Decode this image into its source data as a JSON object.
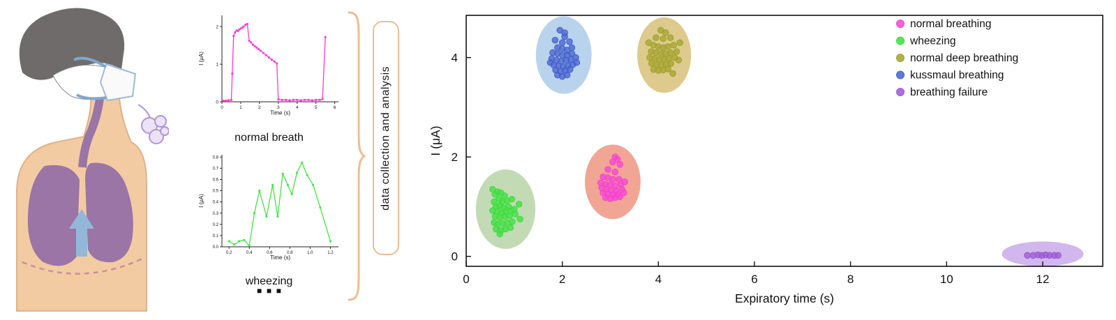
{
  "labels": {
    "process": "data collection and analysis",
    "ellipsis": "■  ■  ■"
  },
  "colors": {
    "brace": "#ecbd93",
    "box_border": "#ecbd93"
  },
  "chart_data": [
    {
      "id": "normal-breath",
      "type": "line",
      "title": "normal breath",
      "xlabel": "Time (s)",
      "ylabel": "I (μA)",
      "color": "#ff38d2",
      "xlim": [
        0,
        6.2
      ],
      "ylim": [
        0,
        2.3
      ],
      "xticks": [
        0,
        1,
        2,
        3,
        4,
        5,
        6
      ],
      "xtick_labels": [
        "0",
        "1",
        "2",
        "3",
        "4",
        "5",
        "6"
      ],
      "yticks": [
        0,
        1,
        2
      ],
      "ytick_labels": [
        "0",
        "1",
        "2"
      ],
      "points": [
        [
          0.05,
          0.03
        ],
        [
          0.2,
          0.03
        ],
        [
          0.35,
          0.04
        ],
        [
          0.5,
          0.05
        ],
        [
          0.55,
          0.75
        ],
        [
          0.62,
          1.75
        ],
        [
          0.7,
          1.85
        ],
        [
          0.78,
          1.9
        ],
        [
          0.85,
          1.88
        ],
        [
          0.92,
          1.92
        ],
        [
          1.0,
          1.95
        ],
        [
          1.08,
          1.97
        ],
        [
          1.15,
          2.0
        ],
        [
          1.25,
          2.05
        ],
        [
          1.35,
          2.07
        ],
        [
          1.45,
          1.62
        ],
        [
          1.55,
          1.58
        ],
        [
          1.65,
          1.52
        ],
        [
          1.75,
          1.48
        ],
        [
          1.85,
          1.44
        ],
        [
          1.95,
          1.4
        ],
        [
          2.05,
          1.36
        ],
        [
          2.2,
          1.3
        ],
        [
          2.35,
          1.24
        ],
        [
          2.5,
          1.18
        ],
        [
          2.65,
          1.12
        ],
        [
          2.8,
          1.07
        ],
        [
          2.92,
          1.02
        ],
        [
          3.0,
          0.06
        ],
        [
          3.2,
          0.05
        ],
        [
          3.4,
          0.05
        ],
        [
          3.6,
          0.04
        ],
        [
          3.8,
          0.05
        ],
        [
          4.0,
          0.05
        ],
        [
          4.2,
          0.04
        ],
        [
          4.4,
          0.05
        ],
        [
          4.6,
          0.05
        ],
        [
          4.8,
          0.04
        ],
        [
          5.0,
          0.05
        ],
        [
          5.2,
          0.05
        ],
        [
          5.35,
          0.07
        ],
        [
          5.5,
          1.72
        ]
      ]
    },
    {
      "id": "wheezing",
      "type": "line",
      "title": "wheezing",
      "xlabel": "Time (s)",
      "ylabel": "I (μA)",
      "color": "#43e243",
      "xlim": [
        0.13,
        1.28
      ],
      "ylim": [
        0,
        0.82
      ],
      "xticks": [
        0.2,
        0.4,
        0.6,
        0.8,
        1.0,
        1.2
      ],
      "xtick_labels": [
        "0.2",
        "0.4",
        "0.6",
        "0.8",
        "1.0",
        "1.2"
      ],
      "yticks": [
        0,
        0.1,
        0.2,
        0.3,
        0.4,
        0.5,
        0.6,
        0.7,
        0.8
      ],
      "ytick_labels": [
        "0.0",
        "0.1",
        "0.2",
        "0.3",
        "0.4",
        "0.5",
        "0.6",
        "0.7",
        "0.8"
      ],
      "points": [
        [
          0.2,
          0.05
        ],
        [
          0.25,
          0.02
        ],
        [
          0.3,
          0.05
        ],
        [
          0.35,
          0.06
        ],
        [
          0.4,
          0.01
        ],
        [
          0.45,
          0.3
        ],
        [
          0.5,
          0.5
        ],
        [
          0.57,
          0.27
        ],
        [
          0.63,
          0.55
        ],
        [
          0.68,
          0.27
        ],
        [
          0.73,
          0.65
        ],
        [
          0.78,
          0.55
        ],
        [
          0.82,
          0.47
        ],
        [
          0.87,
          0.66
        ],
        [
          0.92,
          0.75
        ],
        [
          0.97,
          0.64
        ],
        [
          1.03,
          0.55
        ],
        [
          1.1,
          0.35
        ],
        [
          1.2,
          0.05
        ]
      ]
    },
    {
      "id": "breath-classification",
      "type": "scatter",
      "xlabel": "Expiratory time (s)",
      "ylabel": "I (μA)",
      "xlim": [
        0,
        13.25
      ],
      "ylim": [
        -0.2,
        4.85
      ],
      "xticks": [
        0,
        2,
        4,
        6,
        8,
        10,
        12
      ],
      "xtick_labels": [
        "0",
        "2",
        "4",
        "6",
        "8",
        "10",
        "12"
      ],
      "yticks": [
        0,
        2,
        4
      ],
      "ytick_labels": [
        "0",
        "2",
        "4"
      ],
      "legend_position": "top-right",
      "series": [
        {
          "name": "normal breathing",
          "color": "#f544d2",
          "ellipse_color": "#ee8e7b",
          "ellipse": {
            "cx": 3.05,
            "cy": 1.5,
            "rx": 0.58,
            "ry": 0.75
          },
          "points": [
            [
              3.1,
              2.0
            ],
            [
              3.15,
              1.95
            ],
            [
              3.05,
              1.9
            ],
            [
              3.2,
              1.85
            ],
            [
              2.95,
              1.75
            ],
            [
              3.1,
              1.7
            ],
            [
              2.85,
              1.6
            ],
            [
              2.95,
              1.58
            ],
            [
              3.05,
              1.55
            ],
            [
              3.18,
              1.55
            ],
            [
              2.8,
              1.48
            ],
            [
              2.9,
              1.45
            ],
            [
              3.0,
              1.44
            ],
            [
              3.1,
              1.42
            ],
            [
              3.22,
              1.45
            ],
            [
              3.3,
              1.5
            ],
            [
              2.82,
              1.38
            ],
            [
              2.92,
              1.35
            ],
            [
              3.02,
              1.33
            ],
            [
              3.12,
              1.32
            ],
            [
              3.24,
              1.35
            ],
            [
              2.85,
              1.28
            ],
            [
              2.95,
              1.25
            ],
            [
              3.05,
              1.24
            ],
            [
              3.15,
              1.25
            ],
            [
              3.28,
              1.28
            ],
            [
              2.9,
              1.18
            ],
            [
              3.0,
              1.16
            ],
            [
              3.1,
              1.18
            ],
            [
              3.2,
              1.2
            ]
          ]
        },
        {
          "name": "wheezing",
          "color": "#3ddd3d",
          "ellipse_color": "#b4d2a2",
          "ellipse": {
            "cx": 0.82,
            "cy": 0.95,
            "rx": 0.62,
            "ry": 0.8
          },
          "points": [
            [
              0.55,
              1.35
            ],
            [
              0.65,
              1.3
            ],
            [
              0.6,
              1.25
            ],
            [
              0.72,
              1.28
            ],
            [
              0.8,
              1.22
            ],
            [
              0.68,
              1.15
            ],
            [
              0.58,
              1.1
            ],
            [
              0.75,
              1.1
            ],
            [
              0.85,
              1.12
            ],
            [
              0.95,
              1.15
            ],
            [
              0.62,
              1.0
            ],
            [
              0.7,
              1.02
            ],
            [
              0.78,
              0.98
            ],
            [
              0.88,
              1.0
            ],
            [
              0.55,
              0.92
            ],
            [
              0.65,
              0.9
            ],
            [
              0.74,
              0.88
            ],
            [
              0.82,
              0.9
            ],
            [
              0.92,
              0.92
            ],
            [
              1.0,
              0.95
            ],
            [
              0.6,
              0.8
            ],
            [
              0.7,
              0.78
            ],
            [
              0.8,
              0.8
            ],
            [
              0.9,
              0.82
            ],
            [
              1.02,
              0.85
            ],
            [
              0.58,
              0.68
            ],
            [
              0.66,
              0.65
            ],
            [
              0.76,
              0.66
            ],
            [
              0.86,
              0.68
            ],
            [
              0.96,
              0.7
            ],
            [
              0.62,
              0.55
            ],
            [
              0.72,
              0.52
            ],
            [
              0.82,
              0.55
            ],
            [
              0.92,
              0.58
            ],
            [
              0.7,
              0.45
            ],
            [
              1.1,
              1.05
            ],
            [
              1.12,
              0.75
            ]
          ]
        },
        {
          "name": "normal deep breathing",
          "color": "#a3a32e",
          "ellipse_color": "#d6bd70",
          "ellipse": {
            "cx": 4.12,
            "cy": 4.05,
            "rx": 0.56,
            "ry": 0.76
          },
          "points": [
            [
              4.05,
              4.55
            ],
            [
              4.15,
              4.5
            ],
            [
              3.95,
              4.4
            ],
            [
              4.1,
              4.38
            ],
            [
              4.25,
              4.4
            ],
            [
              3.9,
              4.25
            ],
            [
              4.0,
              4.22
            ],
            [
              4.1,
              4.2
            ],
            [
              4.2,
              4.22
            ],
            [
              4.32,
              4.25
            ],
            [
              3.85,
              4.12
            ],
            [
              3.95,
              4.1
            ],
            [
              4.05,
              4.08
            ],
            [
              4.15,
              4.08
            ],
            [
              4.25,
              4.1
            ],
            [
              4.38,
              4.12
            ],
            [
              3.82,
              4.0
            ],
            [
              3.92,
              3.98
            ],
            [
              4.02,
              3.96
            ],
            [
              4.12,
              3.97
            ],
            [
              4.22,
              3.98
            ],
            [
              4.34,
              4.0
            ],
            [
              3.86,
              3.88
            ],
            [
              3.96,
              3.86
            ],
            [
              4.06,
              3.85
            ],
            [
              4.16,
              3.86
            ],
            [
              4.26,
              3.88
            ],
            [
              3.9,
              3.76
            ],
            [
              4.0,
              3.74
            ],
            [
              4.1,
              3.75
            ],
            [
              4.2,
              3.77
            ],
            [
              4.42,
              3.95
            ],
            [
              4.45,
              4.3
            ],
            [
              3.8,
              4.3
            ],
            [
              4.3,
              3.68
            ]
          ]
        },
        {
          "name": "kussmaul breathing",
          "color": "#4661cd",
          "ellipse_color": "#a8c8e8",
          "ellipse": {
            "cx": 2.03,
            "cy": 4.05,
            "rx": 0.58,
            "ry": 0.78
          },
          "points": [
            [
              1.95,
              4.55
            ],
            [
              2.05,
              4.5
            ],
            [
              1.85,
              4.35
            ],
            [
              2.0,
              4.3
            ],
            [
              2.15,
              4.32
            ],
            [
              1.9,
              4.2
            ],
            [
              2.0,
              4.18
            ],
            [
              2.1,
              4.15
            ],
            [
              2.2,
              4.2
            ],
            [
              1.8,
              4.1
            ],
            [
              1.9,
              4.08
            ],
            [
              2.0,
              4.05
            ],
            [
              2.1,
              4.05
            ],
            [
              2.2,
              4.08
            ],
            [
              1.78,
              3.98
            ],
            [
              1.88,
              3.95
            ],
            [
              1.98,
              3.93
            ],
            [
              2.08,
              3.95
            ],
            [
              2.18,
              3.96
            ],
            [
              2.28,
              4.0
            ],
            [
              1.82,
              3.85
            ],
            [
              1.92,
              3.83
            ],
            [
              2.02,
              3.82
            ],
            [
              2.12,
              3.84
            ],
            [
              2.22,
              3.86
            ],
            [
              1.86,
              3.75
            ],
            [
              1.96,
              3.72
            ],
            [
              2.06,
              3.74
            ],
            [
              2.16,
              3.76
            ],
            [
              1.9,
              3.65
            ],
            [
              2.0,
              3.62
            ],
            [
              2.1,
              3.65
            ],
            [
              2.3,
              3.9
            ],
            [
              1.75,
              3.9
            ],
            [
              2.05,
              4.42
            ]
          ]
        },
        {
          "name": "breathing failure",
          "color": "#9b59d0",
          "ellipse_color": "#c6a5ea",
          "ellipse": {
            "cx": 12.0,
            "cy": 0.05,
            "rx": 0.85,
            "ry": 0.25
          },
          "points": [
            [
              11.68,
              0.02
            ],
            [
              11.8,
              0.02
            ],
            [
              11.9,
              0.03
            ],
            [
              11.98,
              0.02
            ],
            [
              12.06,
              0.03
            ],
            [
              12.14,
              0.02
            ],
            [
              12.24,
              0.02
            ],
            [
              12.32,
              0.02
            ]
          ]
        }
      ]
    }
  ]
}
